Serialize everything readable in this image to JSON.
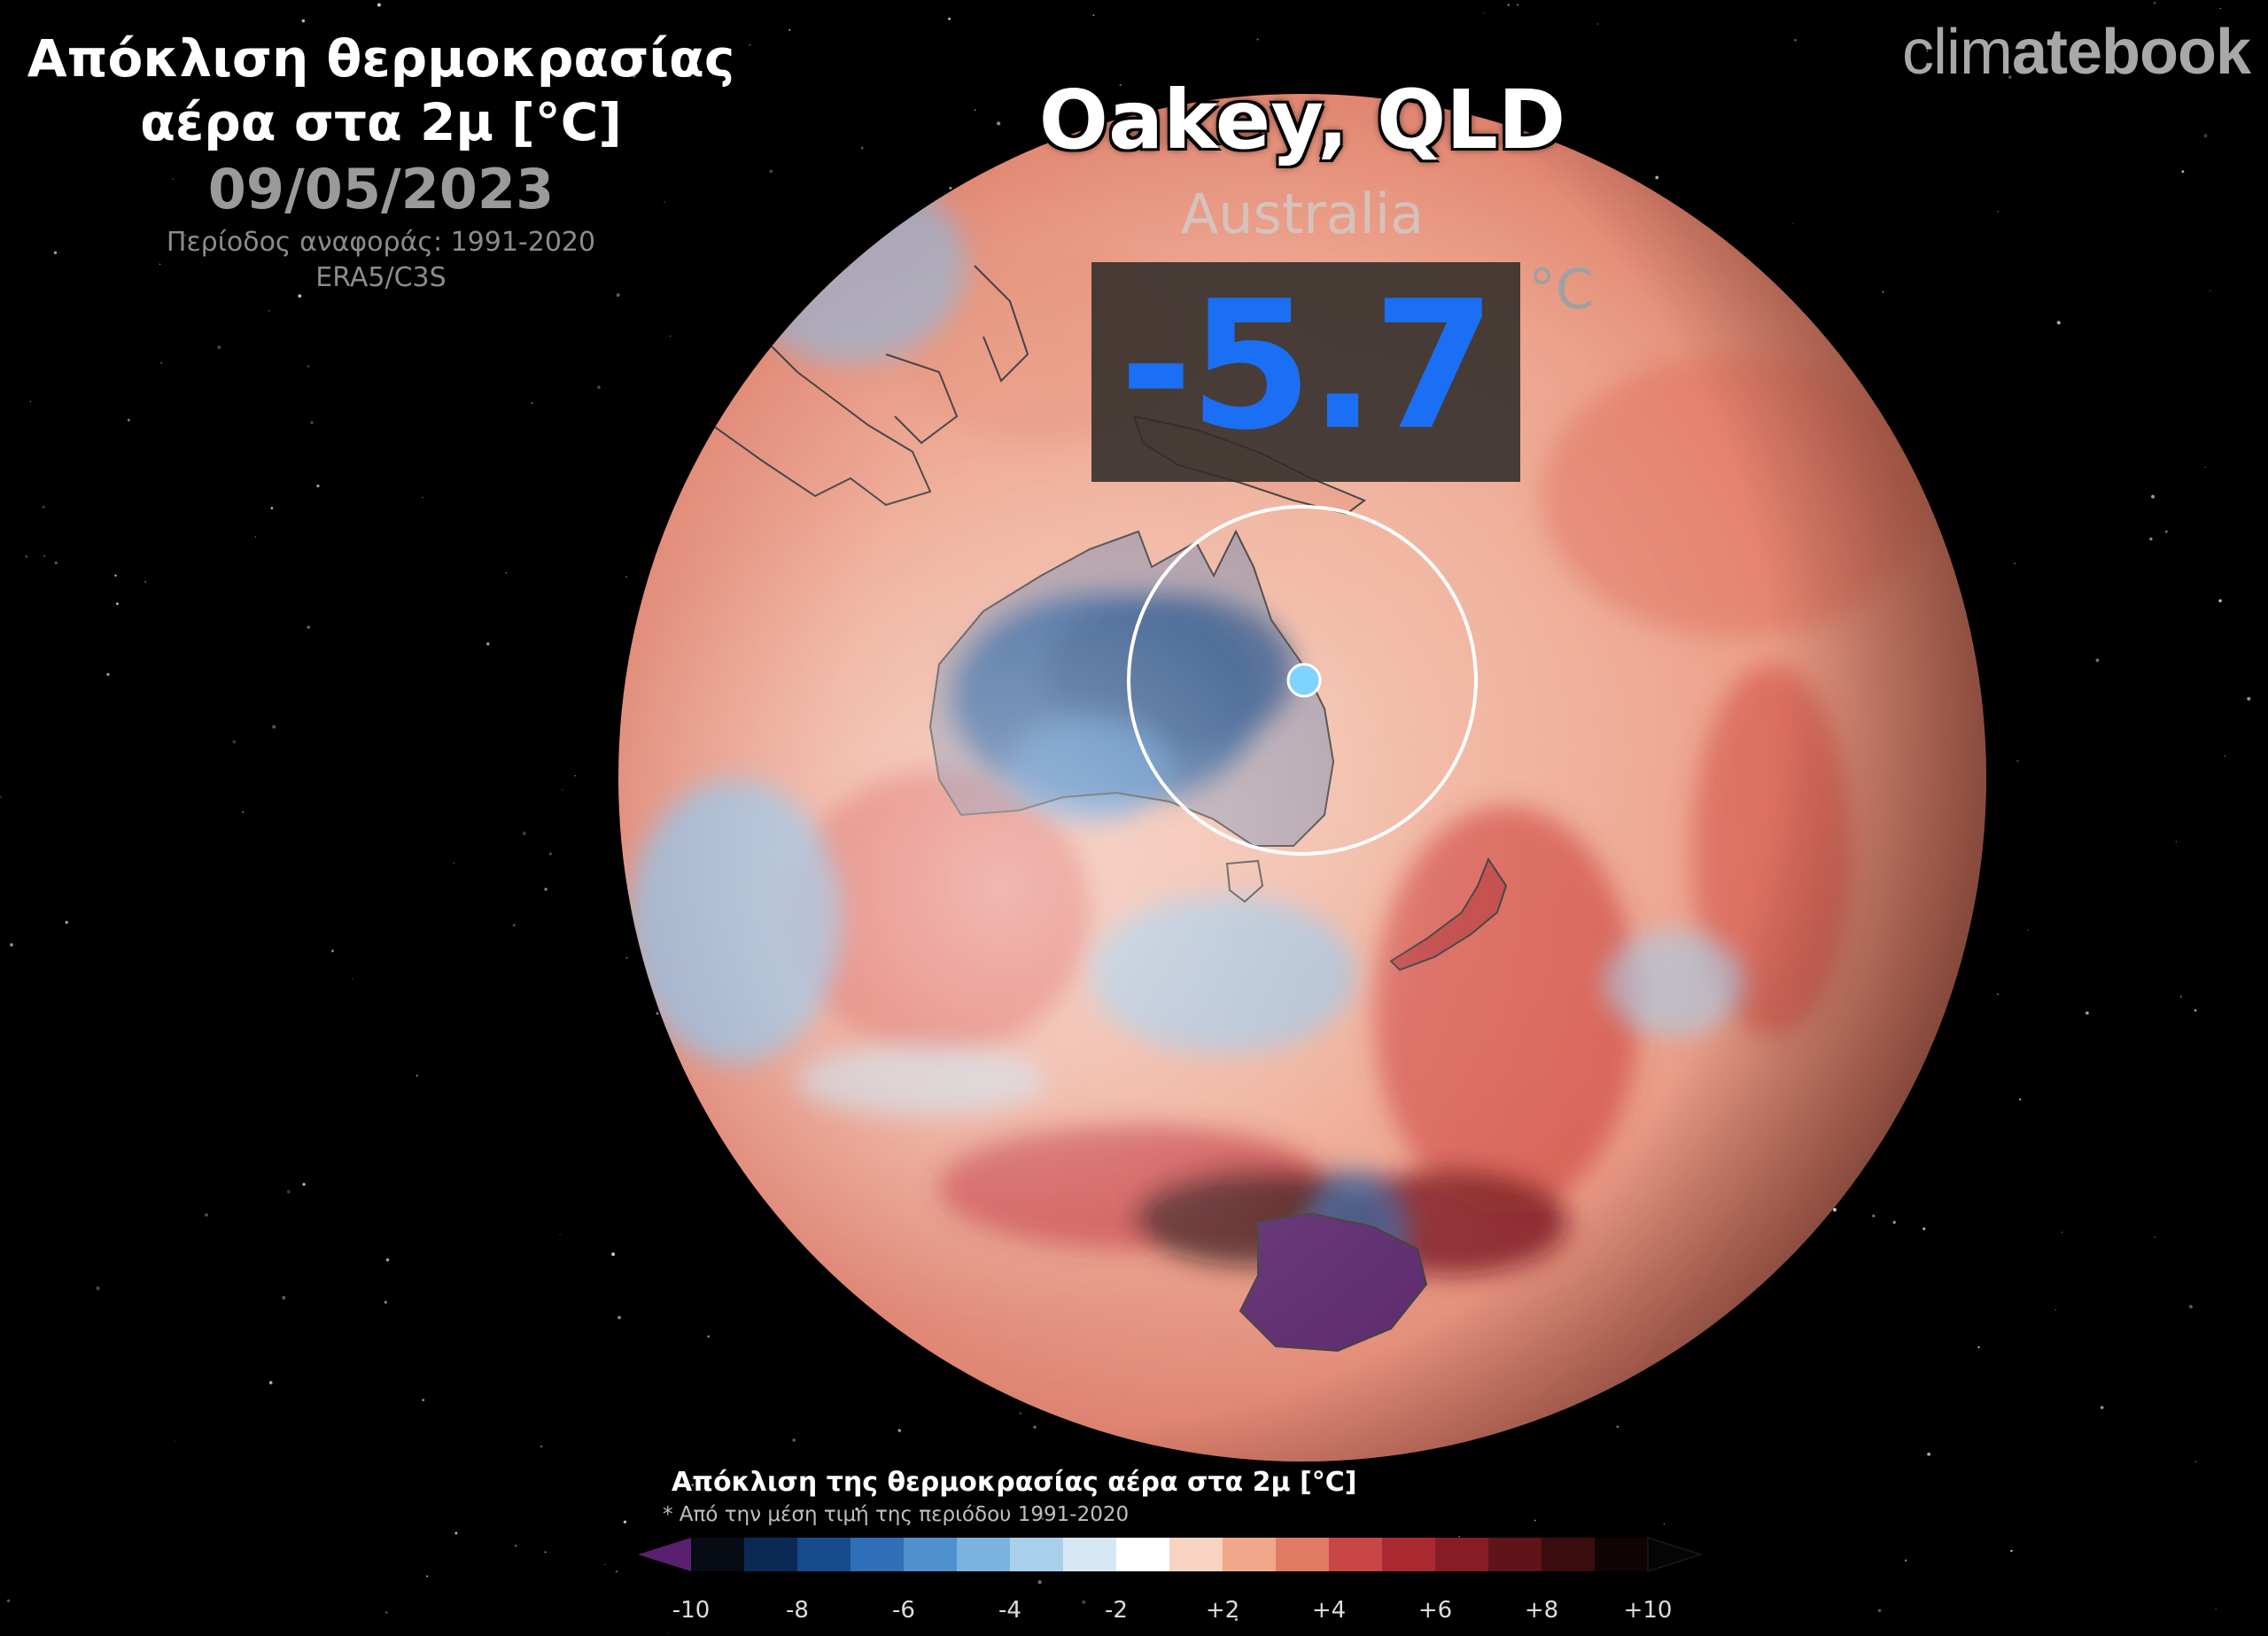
{
  "header": {
    "title_line1": "Απόκλιση θερμοκρασίας",
    "title_line2": "αέρα στα 2μ [°C]",
    "date": "09/05/2023",
    "reference_period": "Περίοδος αναφοράς: 1991-2020",
    "source": "ERA5/C3S"
  },
  "brand": {
    "part1": "clim",
    "part2": "atebook"
  },
  "location": {
    "name": "Oakey, QLD",
    "country": "Australia",
    "value": "-5.7",
    "unit": "°C",
    "value_color": "#1a6ff5",
    "marker_color": "#7fd3ff"
  },
  "legend": {
    "title": "Απόκλιση της θερμοκρασίας αέρα στα 2μ [°C]",
    "note": "* Από την μέση τιμή της περιόδου 1991-2020",
    "tick_labels": [
      "-10",
      "-8",
      "-6",
      "-4",
      "-2",
      "+2",
      "+4",
      "+6",
      "+8",
      "+10"
    ],
    "colors": [
      "#5a1f6e",
      "#060b14",
      "#0a2a55",
      "#174a8c",
      "#2f6fb8",
      "#4f91cc",
      "#7ab3dd",
      "#a9d0ea",
      "#d6e8f4",
      "#ffffff",
      "#f8d3c2",
      "#f0a78a",
      "#e07a60",
      "#c84646",
      "#a82a30",
      "#861c24",
      "#5e1418",
      "#3a0c0e",
      "#100404",
      "#050505"
    ]
  }
}
